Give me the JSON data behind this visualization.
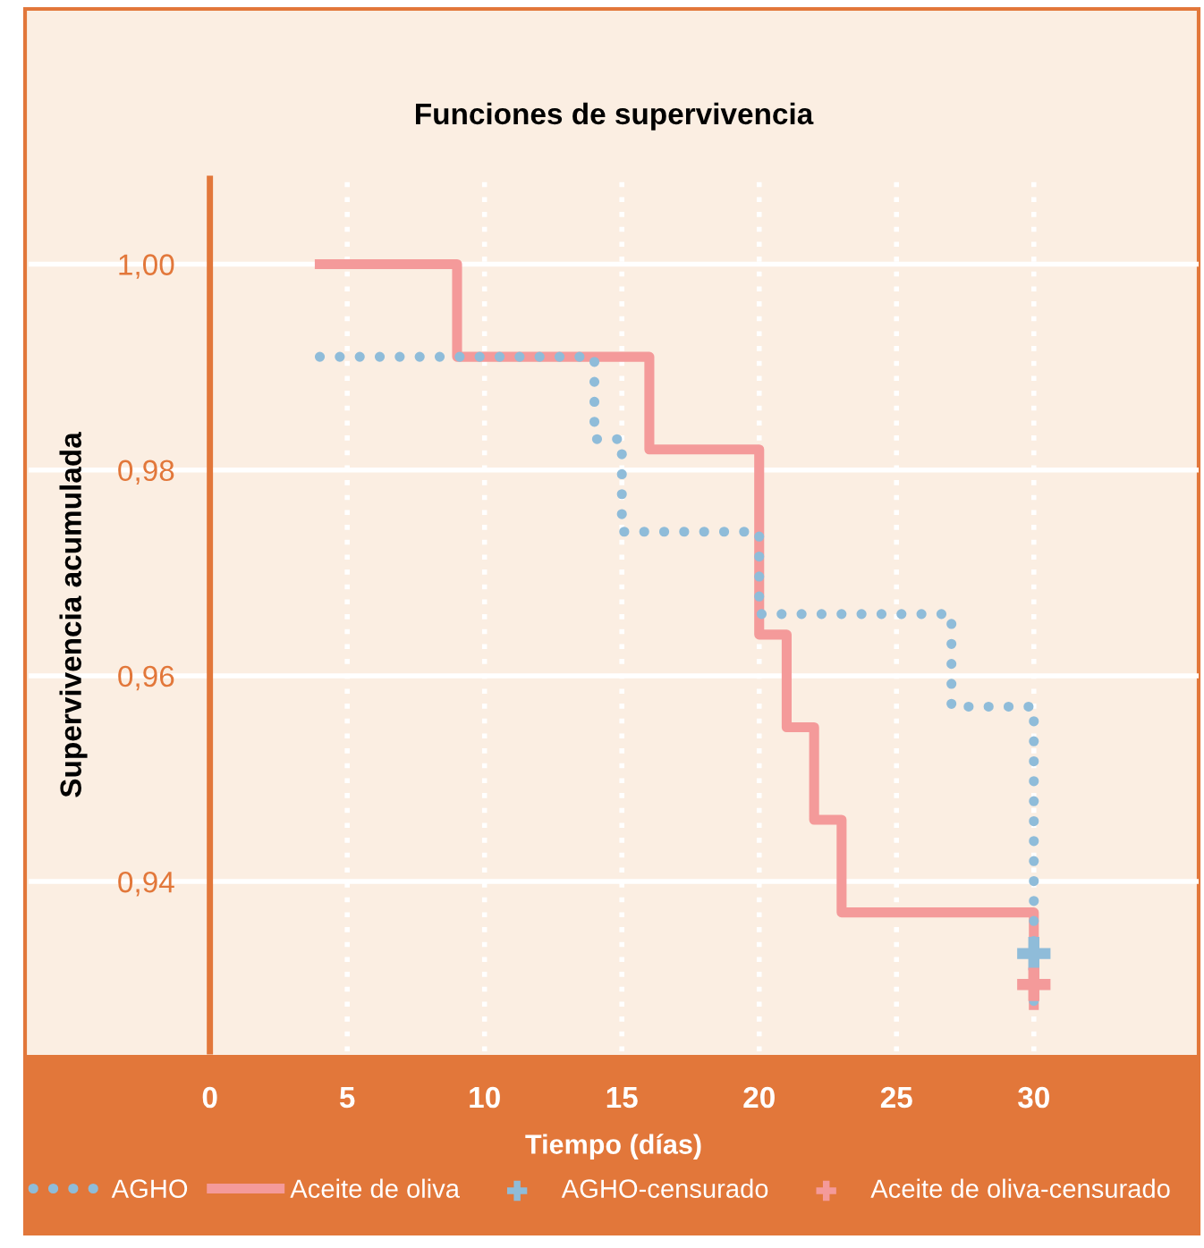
{
  "chart_data": {
    "type": "step",
    "title": "Funciones de supervivencia",
    "xlabel": "Tiempo (días)",
    "ylabel": "Supervivencia acumulada",
    "series": [
      {
        "name": "AGHO",
        "color": "#8fbcd9",
        "line_style": "dotted",
        "x": [
          4,
          14,
          15,
          20,
          27,
          30,
          30
        ],
        "values": [
          0.991,
          0.983,
          0.974,
          0.966,
          0.957,
          0.957,
          0.928
        ]
      },
      {
        "name": "Aceite de oliva",
        "color": "#f49a9a",
        "line_style": "solid",
        "x": [
          4,
          9,
          16,
          20,
          21,
          22,
          23,
          30,
          30
        ],
        "values": [
          1.0,
          0.991,
          0.982,
          0.964,
          0.955,
          0.946,
          0.937,
          0.937,
          0.928
        ]
      },
      {
        "name": "AGHO-censurado",
        "type": "scatter",
        "color": "#8fbcd9",
        "marker": "cross",
        "x": [
          30
        ],
        "values": [
          0.933
        ]
      },
      {
        "name": "Aceite de oliva-censurado",
        "type": "scatter",
        "color": "#f49a9a",
        "marker": "cross",
        "x": [
          30
        ],
        "values": [
          0.93
        ]
      }
    ],
    "xlim": [
      -6.6,
      36
    ],
    "ylim": [
      0.9235,
      1.0083
    ],
    "xticks": [
      0,
      5,
      10,
      15,
      20,
      25,
      30
    ],
    "yticks": [
      {
        "value": 0.94,
        "label": "0,94"
      },
      {
        "value": 0.96,
        "label": "0,96"
      },
      {
        "value": 0.98,
        "label": "0,98"
      },
      {
        "value": 1.0,
        "label": "1,00"
      }
    ],
    "grid": true,
    "legend": "bottom"
  }
}
